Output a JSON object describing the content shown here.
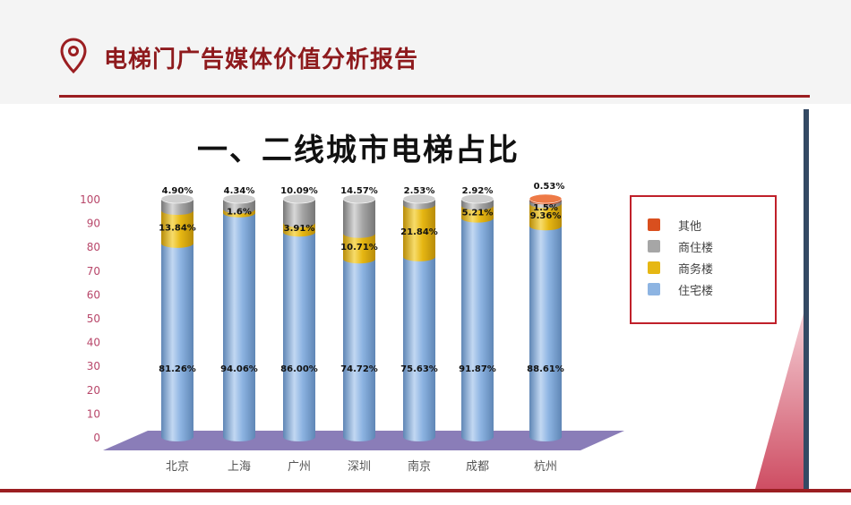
{
  "header": {
    "title": "电梯门广告媒体价值分析报告",
    "icon": "location-pin-icon"
  },
  "colors": {
    "brand": "#9b1e21",
    "residential": "#8db4e2",
    "office": "#e6b713",
    "mixed": "#a6a6a6",
    "other": "#d94f1e"
  },
  "chart_data": {
    "type": "bar",
    "stacked": true,
    "title": "一、二线城市电梯占比",
    "xlabel": "",
    "ylabel": "",
    "ylim": [
      0,
      100
    ],
    "yticks": [
      "0",
      "10",
      "20",
      "30",
      "40",
      "50",
      "60",
      "70",
      "80",
      "90",
      "100"
    ],
    "categories": [
      "北京",
      "上海",
      "广州",
      "深圳",
      "南京",
      "成都",
      "杭州"
    ],
    "legend_position": "right",
    "series": [
      {
        "name": "住宅楼",
        "color": "#8db4e2",
        "values": [
          81.26,
          94.06,
          86.0,
          74.72,
          75.63,
          91.87,
          88.61
        ],
        "labels": [
          "81.26%",
          "94.06%",
          "86.00%",
          "74.72%",
          "75.63%",
          "91.87%",
          "88.61%"
        ]
      },
      {
        "name": "商务楼",
        "color": "#e6b713",
        "values": [
          13.84,
          1.6,
          3.91,
          10.71,
          21.84,
          5.21,
          9.36
        ],
        "labels": [
          "13.84%",
          "1.6%",
          "3.91%",
          "10.71%",
          "21.84%",
          "5.21%",
          "9.36%"
        ]
      },
      {
        "name": "商住楼",
        "color": "#a6a6a6",
        "values": [
          4.9,
          4.34,
          10.09,
          14.57,
          2.53,
          2.92,
          1.5
        ],
        "labels": [
          "4.90%",
          "4.34%",
          "10.09%",
          "14.57%",
          "2.53%",
          "2.92%",
          "1.5%"
        ]
      },
      {
        "name": "其他",
        "color": "#d94f1e",
        "values": [
          0,
          0,
          0,
          0,
          0,
          0,
          0.53
        ],
        "labels": [
          "",
          "",
          "",
          "",
          "",
          "",
          "0.53%"
        ]
      }
    ]
  }
}
